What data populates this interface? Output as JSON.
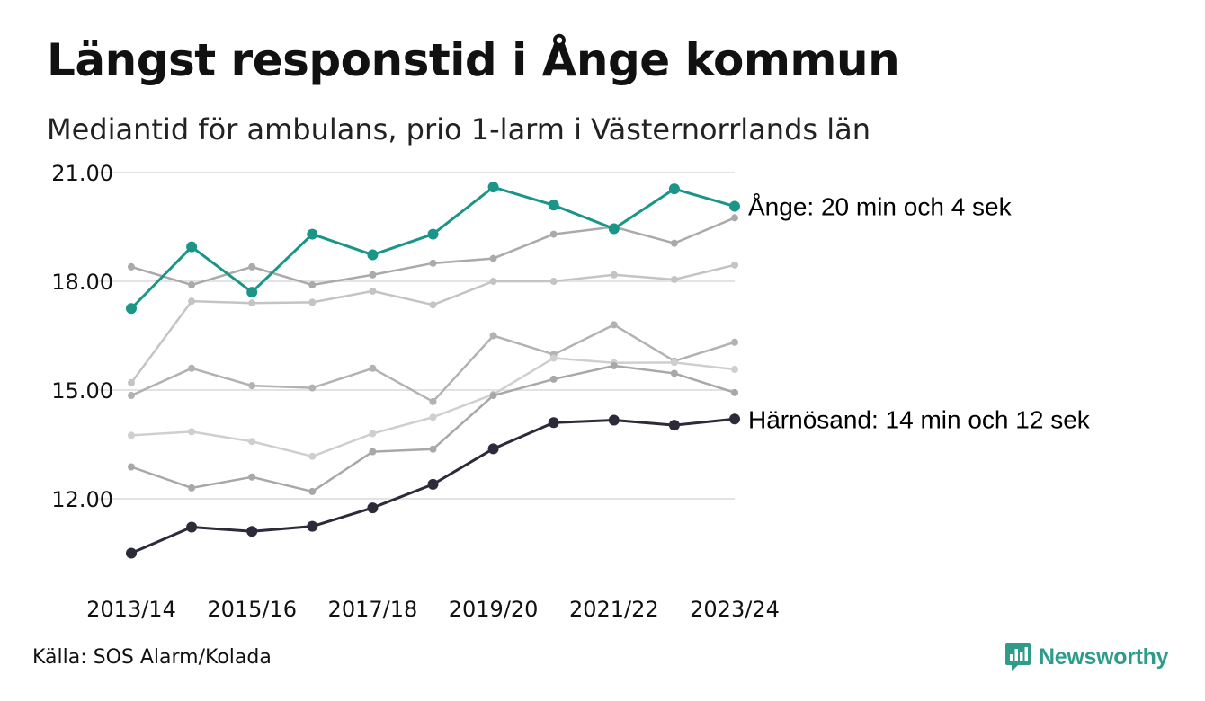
{
  "header": {
    "title": "Längst responstid i Ånge kommun",
    "subtitle": "Mediantid för ambulans, prio 1-larm i Västernorrlands län"
  },
  "footer": {
    "source": "Källa: SOS Alarm/Kolada",
    "brand": "Newsworthy"
  },
  "colors": {
    "highlight_1": "#1a9587",
    "highlight_2": "#2b2b3a",
    "background_series": [
      "#aaaaaa",
      "#c4c4c4",
      "#b2b2b2",
      "#cfcfcf",
      "#a8a8a8",
      "#bdbdbd"
    ],
    "grid": "#e3e3e3",
    "brand": "#2f9b8a"
  },
  "chart_data": {
    "type": "line",
    "x": [
      "2013/14",
      "2014/15",
      "2015/16",
      "2016/17",
      "2017/18",
      "2018/19",
      "2019/20",
      "2020/21",
      "2021/22",
      "2022/23",
      "2023/24"
    ],
    "x_tick_labels": [
      "2013/14",
      "2015/16",
      "2017/18",
      "2019/20",
      "2021/22",
      "2023/24"
    ],
    "y_ticks": [
      "12.00",
      "15.00",
      "18.00",
      "21.00"
    ],
    "ylim": [
      10.5,
      21.5
    ],
    "grid": true,
    "highlighted": [
      {
        "label": "Ånge: 20 min och 4 sek",
        "values": [
          17.25,
          18.95,
          17.7,
          19.3,
          18.73,
          19.3,
          20.6,
          20.1,
          19.45,
          20.55,
          20.07
        ]
      },
      {
        "label": "Härnösand: 14 min och 12 sek",
        "values": [
          10.5,
          11.22,
          11.1,
          11.24,
          11.75,
          12.4,
          13.38,
          14.1,
          14.17,
          14.03,
          14.2
        ]
      }
    ],
    "series": [
      {
        "values": [
          18.4,
          17.9,
          18.4,
          17.9,
          18.18,
          18.5,
          18.63,
          19.3,
          19.5,
          19.05,
          19.75
        ]
      },
      {
        "values": [
          15.2,
          17.45,
          17.4,
          17.42,
          17.73,
          17.35,
          18.0,
          18.0,
          18.18,
          18.05,
          18.45
        ]
      },
      {
        "values": [
          14.85,
          15.6,
          15.12,
          15.06,
          15.6,
          14.68,
          16.5,
          15.98,
          16.8,
          15.8,
          16.32
        ]
      },
      {
        "values": [
          13.75,
          13.85,
          13.58,
          13.17,
          13.8,
          14.25,
          14.88,
          15.88,
          15.75,
          15.76,
          15.57
        ]
      },
      {
        "values": [
          12.88,
          12.3,
          12.6,
          12.2,
          13.3,
          13.37,
          14.85,
          15.3,
          15.67,
          15.46,
          14.93
        ]
      }
    ]
  }
}
